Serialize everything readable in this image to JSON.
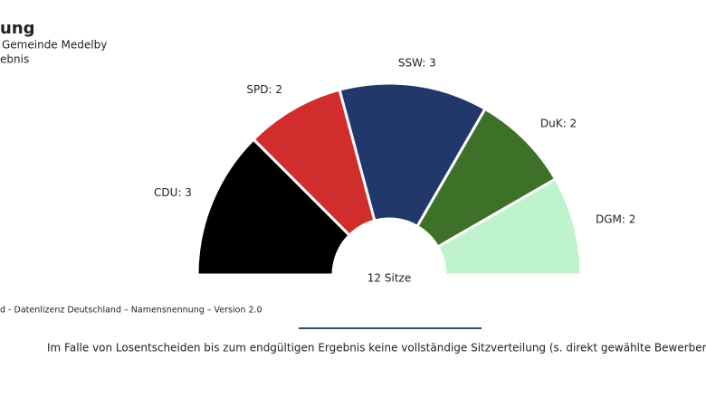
{
  "header": {
    "title": "ung",
    "subtitle": "Gemeinde Medelby",
    "subtitle2": "ebnis"
  },
  "chart_data": {
    "type": "parliament",
    "values": [
      3,
      2,
      3,
      2,
      2
    ],
    "value_labels": [
      "CDU: 3",
      "SPD: 2",
      "SSW: 3",
      "DuK: 2",
      "DGM: 2"
    ],
    "colors": [
      "#000000",
      "#d12d2c",
      "#22386a",
      "#3e7128",
      "#bff3cc"
    ],
    "center_label": "12 Sitze"
  },
  "footer": {
    "source": "d - Datenlizenz Deutschland – Namensnennung – Version 2.0",
    "note": "Im Falle von Losentscheiden bis zum endgültigen Ergebnis keine vollständige Sitzverteilung (s. direkt gewählte Bewerberinnen und B"
  }
}
